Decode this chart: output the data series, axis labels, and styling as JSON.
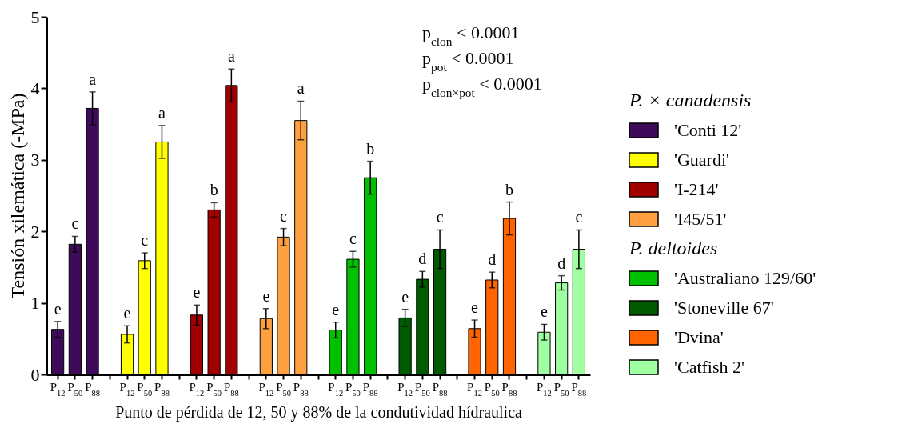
{
  "chart_data": {
    "type": "bar",
    "xlabel": "Punto de pérdida de 12, 50 y 88% de la condutividad hídraulica",
    "ylabel": "Tensión xilemática (-MPa)",
    "legend_title": "P. × canadensis",
    "legend": "right",
    "categories": [
      "P$_{12}$",
      "P$_{50}$",
      "P$_{88}$",
      "P$_{12}$",
      "P$_{50}$",
      "P$_{88}$",
      "P$_{12}$",
      "P$_{50}$",
      "P$_{88}$",
      "P$_{12}$",
      "P$_{50}$",
      "P$_{88}$",
      "P$_{12}$",
      "P$_{50}$",
      "P$_{88}$",
      "P$_{12}$",
      "P$_{50}$",
      "P$_{88}$",
      "P$_{12}$",
      "P$_{50}$",
      "P$_{88}$",
      "P$_{12}$",
      "P$_{50}$",
      "P$_{88}$"
    ],
    "ylim": [
      0,
      5
    ],
    "yticks": [
      0,
      1,
      2,
      3,
      4,
      5
    ],
    "grid": false,
    "annotations": [
      "p$_{clon}$ < 0.0001",
      "p$_{pot}$ < 0.0001",
      "p$_{clon×pot}$ < 0.0001",
      "P. deltoides"
    ],
    "series": [
      {
        "name": "'Conti 12'",
        "color": "#400a5a",
        "values": [
          0.63,
          1.82,
          3.72,
          null,
          null,
          null,
          null,
          null,
          null,
          null,
          null,
          null,
          null,
          null,
          null,
          null,
          null,
          null,
          null,
          null,
          null,
          null,
          null,
          null
        ],
        "errors": [
          0.11,
          0.11,
          0.23,
          null,
          null,
          null,
          null,
          null,
          null,
          null,
          null,
          null,
          null,
          null,
          null,
          null,
          null,
          null,
          null,
          null,
          null,
          null,
          null,
          null
        ],
        "value_labels": [
          "e",
          "c",
          "a",
          null,
          null,
          null,
          null,
          null,
          null,
          null,
          null,
          null,
          null,
          null,
          null,
          null,
          null,
          null,
          null,
          null,
          null,
          null,
          null,
          null
        ]
      },
      {
        "name": "'Guardi'",
        "color": "#ffff00",
        "values": [
          null,
          null,
          null,
          0.56,
          1.59,
          3.25,
          null,
          null,
          null,
          null,
          null,
          null,
          null,
          null,
          null,
          null,
          null,
          null,
          null,
          null,
          null,
          null,
          null,
          null
        ],
        "errors": [
          null,
          null,
          null,
          0.12,
          0.11,
          0.23,
          null,
          null,
          null,
          null,
          null,
          null,
          null,
          null,
          null,
          null,
          null,
          null,
          null,
          null,
          null,
          null,
          null,
          null
        ],
        "value_labels": [
          null,
          null,
          null,
          "e",
          "c",
          "a",
          null,
          null,
          null,
          null,
          null,
          null,
          null,
          null,
          null,
          null,
          null,
          null,
          null,
          null,
          null,
          null,
          null,
          null
        ]
      },
      {
        "name": "'I-214'",
        "color": "#a00000",
        "values": [
          null,
          null,
          null,
          null,
          null,
          null,
          0.83,
          2.3,
          4.04,
          null,
          null,
          null,
          null,
          null,
          null,
          null,
          null,
          null,
          null,
          null,
          null,
          null,
          null,
          null
        ],
        "errors": [
          null,
          null,
          null,
          null,
          null,
          null,
          0.14,
          0.1,
          0.23,
          null,
          null,
          null,
          null,
          null,
          null,
          null,
          null,
          null,
          null,
          null,
          null,
          null,
          null,
          null
        ],
        "value_labels": [
          null,
          null,
          null,
          null,
          null,
          null,
          "e",
          "b",
          "a",
          null,
          null,
          null,
          null,
          null,
          null,
          null,
          null,
          null,
          null,
          null,
          null,
          null,
          null,
          null
        ]
      },
      {
        "name": "'I45/51'",
        "color": "#ffa040",
        "values": [
          null,
          null,
          null,
          null,
          null,
          null,
          null,
          null,
          null,
          0.78,
          1.92,
          3.55,
          null,
          null,
          null,
          null,
          null,
          null,
          null,
          null,
          null,
          null,
          null,
          null
        ],
        "errors": [
          null,
          null,
          null,
          null,
          null,
          null,
          null,
          null,
          null,
          0.14,
          0.12,
          0.27,
          null,
          null,
          null,
          null,
          null,
          null,
          null,
          null,
          null,
          null,
          null,
          null
        ],
        "value_labels": [
          null,
          null,
          null,
          null,
          null,
          null,
          null,
          null,
          null,
          "e",
          "c",
          "a",
          null,
          null,
          null,
          null,
          null,
          null,
          null,
          null,
          null,
          null,
          null,
          null
        ]
      },
      {
        "name": "'Australiano 129/60'",
        "color": "#00c000",
        "values": [
          null,
          null,
          null,
          null,
          null,
          null,
          null,
          null,
          null,
          null,
          null,
          null,
          0.62,
          1.61,
          2.75,
          null,
          null,
          null,
          null,
          null,
          null,
          null,
          null,
          null
        ],
        "errors": [
          null,
          null,
          null,
          null,
          null,
          null,
          null,
          null,
          null,
          null,
          null,
          null,
          0.11,
          0.11,
          0.23,
          null,
          null,
          null,
          null,
          null,
          null,
          null,
          null,
          null
        ],
        "value_labels": [
          null,
          null,
          null,
          null,
          null,
          null,
          null,
          null,
          null,
          null,
          null,
          null,
          "e",
          "c",
          "b",
          null,
          null,
          null,
          null,
          null,
          null,
          null,
          null,
          null
        ]
      },
      {
        "name": "'Stoneville 67'",
        "color": "#005a00",
        "values": [
          null,
          null,
          null,
          null,
          null,
          null,
          null,
          null,
          null,
          null,
          null,
          null,
          null,
          null,
          null,
          0.79,
          1.33,
          1.75,
          null,
          null,
          null,
          null,
          null,
          null
        ],
        "errors": [
          null,
          null,
          null,
          null,
          null,
          null,
          null,
          null,
          null,
          null,
          null,
          null,
          null,
          null,
          null,
          0.12,
          0.11,
          0.27,
          null,
          null,
          null,
          null,
          null,
          null
        ],
        "value_labels": [
          null,
          null,
          null,
          null,
          null,
          null,
          null,
          null,
          null,
          null,
          null,
          null,
          null,
          null,
          null,
          "e",
          "d",
          "c",
          null,
          null,
          null,
          null,
          null,
          null
        ]
      },
      {
        "name": "'Dvina'",
        "color": "#ff6400",
        "values": [
          null,
          null,
          null,
          null,
          null,
          null,
          null,
          null,
          null,
          null,
          null,
          null,
          null,
          null,
          null,
          null,
          null,
          null,
          0.64,
          1.32,
          2.18,
          null,
          null,
          null
        ],
        "errors": [
          null,
          null,
          null,
          null,
          null,
          null,
          null,
          null,
          null,
          null,
          null,
          null,
          null,
          null,
          null,
          null,
          null,
          null,
          0.12,
          0.11,
          0.23,
          null,
          null,
          null
        ],
        "value_labels": [
          null,
          null,
          null,
          null,
          null,
          null,
          null,
          null,
          null,
          null,
          null,
          null,
          null,
          null,
          null,
          null,
          null,
          null,
          "e",
          "d",
          "b",
          null,
          null,
          null
        ]
      },
      {
        "name": "'Catfish 2'",
        "color": "#a0ffa0",
        "values": [
          null,
          null,
          null,
          null,
          null,
          null,
          null,
          null,
          null,
          null,
          null,
          null,
          null,
          null,
          null,
          null,
          null,
          null,
          null,
          null,
          null,
          0.59,
          1.28,
          1.75
        ],
        "errors": [
          null,
          null,
          null,
          null,
          null,
          null,
          null,
          null,
          null,
          null,
          null,
          null,
          null,
          null,
          null,
          null,
          null,
          null,
          null,
          null,
          null,
          0.11,
          0.1,
          0.27
        ],
        "value_labels": [
          null,
          null,
          null,
          null,
          null,
          null,
          null,
          null,
          null,
          null,
          null,
          null,
          null,
          null,
          null,
          null,
          null,
          null,
          null,
          null,
          null,
          "e",
          "d",
          "c"
        ]
      }
    ]
  }
}
